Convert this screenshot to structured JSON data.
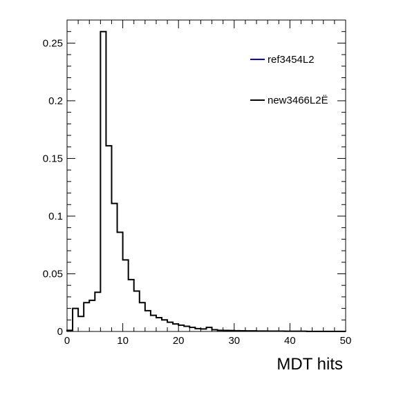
{
  "chart_data": {
    "type": "histogram",
    "xlabel": "MDT hits",
    "ylabel": "",
    "xlim": [
      0,
      50
    ],
    "ylim": [
      0,
      0.27
    ],
    "grid": false,
    "legend_placement": "top-right",
    "x_ticks": [
      0,
      10,
      20,
      30,
      40,
      50
    ],
    "y_ticks": [
      0,
      0.05,
      0.1,
      0.15,
      0.2,
      0.25
    ],
    "bin_edges": [
      0,
      1,
      2,
      3,
      4,
      5,
      6,
      7,
      8,
      9,
      10,
      11,
      12,
      13,
      14,
      15,
      16,
      17,
      18,
      19,
      20,
      21,
      22,
      23,
      24,
      25,
      26,
      27,
      28,
      29,
      30,
      31,
      32,
      33,
      34,
      35,
      36,
      37,
      38,
      39,
      40,
      41,
      42,
      43,
      44,
      45,
      46,
      47,
      48,
      49,
      50
    ],
    "series": [
      {
        "name": "ref3454L2",
        "color": "#0000ff",
        "values": []
      },
      {
        "name": "new3466L2Ë",
        "color": "#000000",
        "values": [
          0.001,
          0.02,
          0.013,
          0.025,
          0.027,
          0.034,
          0.26,
          0.161,
          0.111,
          0.086,
          0.062,
          0.045,
          0.035,
          0.025,
          0.018,
          0.014,
          0.012,
          0.01,
          0.008,
          0.0065,
          0.0055,
          0.0045,
          0.0035,
          0.0025,
          0.0022,
          0.0035,
          0.0015,
          0.001,
          0.0009,
          0.0008,
          0.0007,
          0.0006,
          0.0005,
          0.0005,
          0.0004,
          0.0004,
          0.0003,
          0.0003,
          0.0003,
          0.0002,
          0.0002,
          0.0002,
          0.0002,
          0.0001,
          0.0001,
          0.0001,
          0.0001,
          0.0001,
          0.0001,
          0.0001
        ]
      }
    ]
  }
}
